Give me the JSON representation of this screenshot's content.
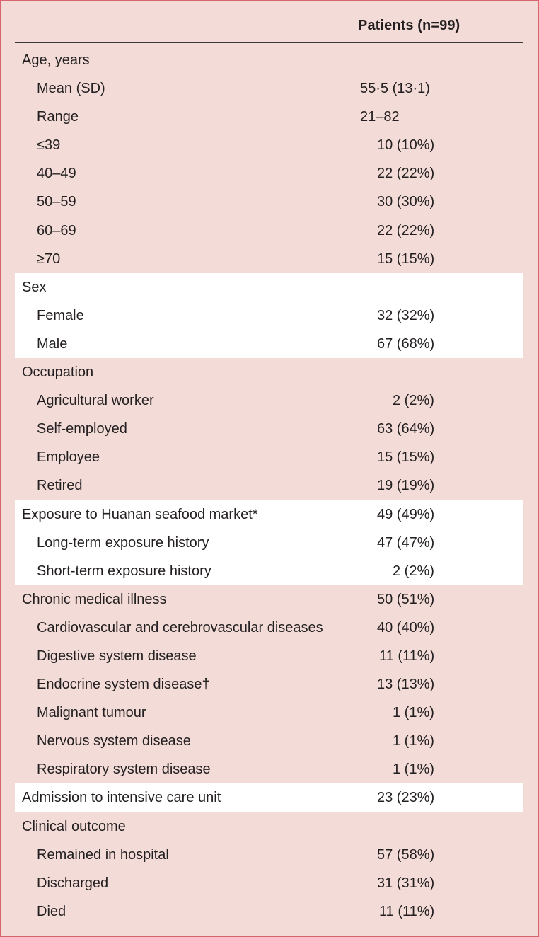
{
  "header": {
    "column": "Patients (n=99)"
  },
  "groups": [
    {
      "highlight": false,
      "rows": [
        {
          "label": "Age, years",
          "value": "",
          "sub": false
        },
        {
          "label": "Mean (SD)",
          "value": "55·5 (13·1)",
          "sub": true
        },
        {
          "label": "Range",
          "value": "21–82",
          "sub": true
        },
        {
          "label": "≤39",
          "value": "10 (10%)",
          "sub": true
        },
        {
          "label": "40–49",
          "value": "22 (22%)",
          "sub": true
        },
        {
          "label": "50–59",
          "value": "30 (30%)",
          "sub": true
        },
        {
          "label": "60–69",
          "value": "22 (22%)",
          "sub": true
        },
        {
          "label": "≥70",
          "value": "15 (15%)",
          "sub": true
        }
      ]
    },
    {
      "highlight": true,
      "rows": [
        {
          "label": "Sex",
          "value": "",
          "sub": false
        },
        {
          "label": "Female",
          "value": "32 (32%)",
          "sub": true
        },
        {
          "label": "Male",
          "value": "67 (68%)",
          "sub": true
        }
      ]
    },
    {
      "highlight": false,
      "rows": [
        {
          "label": "Occupation",
          "value": "",
          "sub": false
        },
        {
          "label": "Agricultural worker",
          "value": "2 (2%)",
          "sub": true
        },
        {
          "label": "Self-employed",
          "value": "63 (64%)",
          "sub": true
        },
        {
          "label": "Employee",
          "value": "15 (15%)",
          "sub": true
        },
        {
          "label": "Retired",
          "value": "19 (19%)",
          "sub": true
        }
      ]
    },
    {
      "highlight": true,
      "rows": [
        {
          "label": "Exposure to Huanan seafood market*",
          "value": "49 (49%)",
          "sub": false
        },
        {
          "label": "Long-term exposure history",
          "value": "47 (47%)",
          "sub": true
        },
        {
          "label": "Short-term exposure history",
          "value": "2 (2%)",
          "sub": true
        }
      ]
    },
    {
      "highlight": false,
      "rows": [
        {
          "label": "Chronic medical illness",
          "value": "50 (51%)",
          "sub": false
        },
        {
          "label": "Cardiovascular and cerebrovascular diseases",
          "value": "40 (40%)",
          "sub": true
        },
        {
          "label": "Digestive system disease",
          "value": "11 (11%)",
          "sub": true
        },
        {
          "label": "Endocrine system disease†",
          "value": "13 (13%)",
          "sub": true
        },
        {
          "label": "Malignant tumour",
          "value": "1 (1%)",
          "sub": true
        },
        {
          "label": "Nervous system disease",
          "value": "1 (1%)",
          "sub": true
        },
        {
          "label": "Respiratory system disease",
          "value": "1 (1%)",
          "sub": true
        }
      ]
    },
    {
      "highlight": true,
      "rows": [
        {
          "label": "Admission to intensive care unit",
          "value": "23 (23%)",
          "sub": false
        }
      ]
    },
    {
      "highlight": false,
      "rows": [
        {
          "label": "Clinical outcome",
          "value": "",
          "sub": false
        },
        {
          "label": "Remained in hospital",
          "value": "57 (58%)",
          "sub": true
        },
        {
          "label": "Discharged",
          "value": "31 (31%)",
          "sub": true
        },
        {
          "label": "Died",
          "value": "11 (11%)",
          "sub": true
        }
      ]
    }
  ]
}
